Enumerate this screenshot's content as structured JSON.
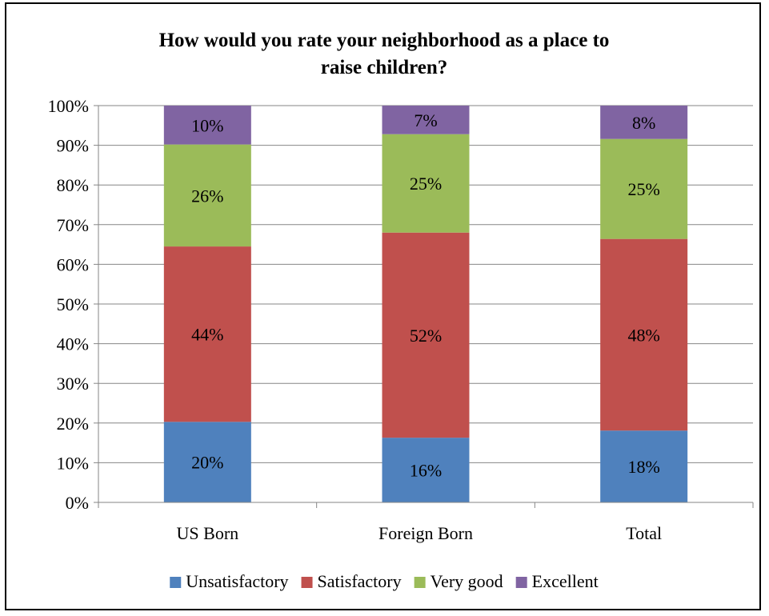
{
  "chart_data": {
    "type": "bar",
    "stacked": true,
    "percent_stacked": true,
    "title": "How would you rate your neighborhood as a place to raise children?",
    "xlabel": "",
    "ylabel": "",
    "ylim": [
      0,
      100
    ],
    "yticks": [
      "0%",
      "10%",
      "20%",
      "30%",
      "40%",
      "50%",
      "60%",
      "70%",
      "80%",
      "90%",
      "100%"
    ],
    "categories": [
      "US Born",
      "Foreign Born",
      "Total"
    ],
    "series": [
      {
        "name": "Unsatisfactory",
        "color": "#4F81BD",
        "values": [
          20.3,
          16.3,
          18.1
        ],
        "labels": [
          "20%",
          "16%",
          "18%"
        ]
      },
      {
        "name": "Satisfactory",
        "color": "#C0504D",
        "values": [
          44.2,
          51.7,
          48.3
        ],
        "labels": [
          "44%",
          "52%",
          "48%"
        ]
      },
      {
        "name": "Very good",
        "color": "#9BBB59",
        "values": [
          25.7,
          24.8,
          25.2
        ],
        "labels": [
          "26%",
          "25%",
          "25%"
        ]
      },
      {
        "name": "Excellent",
        "color": "#8064A2",
        "values": [
          9.8,
          7.2,
          8.4
        ],
        "labels": [
          "10%",
          "7%",
          "8%"
        ]
      }
    ],
    "grid": true,
    "legend": "bottom"
  }
}
